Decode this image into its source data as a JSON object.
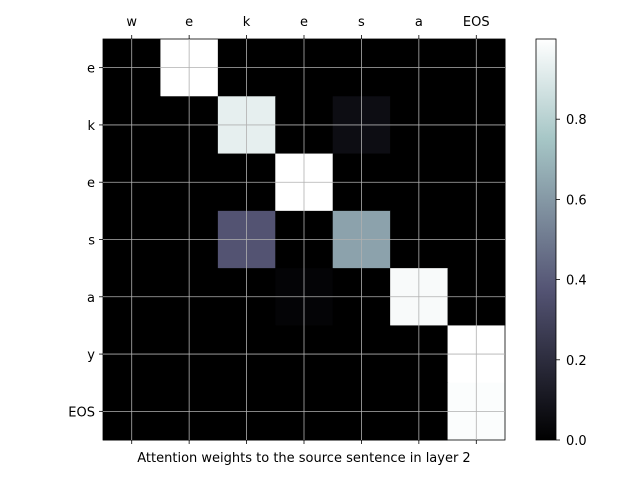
{
  "chart_data": {
    "type": "heatmap",
    "x_tokens": [
      "w",
      "e",
      "k",
      "e",
      "s",
      "a",
      "EOS"
    ],
    "y_tokens": [
      "e",
      "k",
      "e",
      "s",
      "a",
      "y",
      "EOS"
    ],
    "values": [
      [
        0.0,
        1.0,
        0.0,
        0.0,
        0.0,
        0.0,
        0.0
      ],
      [
        0.0,
        0.0,
        0.93,
        0.0,
        0.06,
        0.0,
        0.0
      ],
      [
        0.0,
        0.0,
        0.0,
        1.0,
        0.0,
        0.0,
        0.0
      ],
      [
        0.0,
        0.0,
        0.37,
        0.0,
        0.63,
        0.0,
        0.0
      ],
      [
        0.0,
        0.0,
        0.0,
        0.02,
        0.0,
        0.98,
        0.0
      ],
      [
        0.0,
        0.0,
        0.0,
        0.0,
        0.0,
        0.0,
        1.0
      ],
      [
        0.0,
        0.0,
        0.0,
        0.0,
        0.0,
        0.0,
        0.99
      ]
    ],
    "xlabel": "Attention weights to the source sentence in layer 2",
    "colorbar": {
      "ticks": [
        "0.0",
        "0.2",
        "0.4",
        "0.6",
        "0.8"
      ],
      "range": [
        0,
        1
      ],
      "colormap": "bone"
    },
    "grid": true
  }
}
